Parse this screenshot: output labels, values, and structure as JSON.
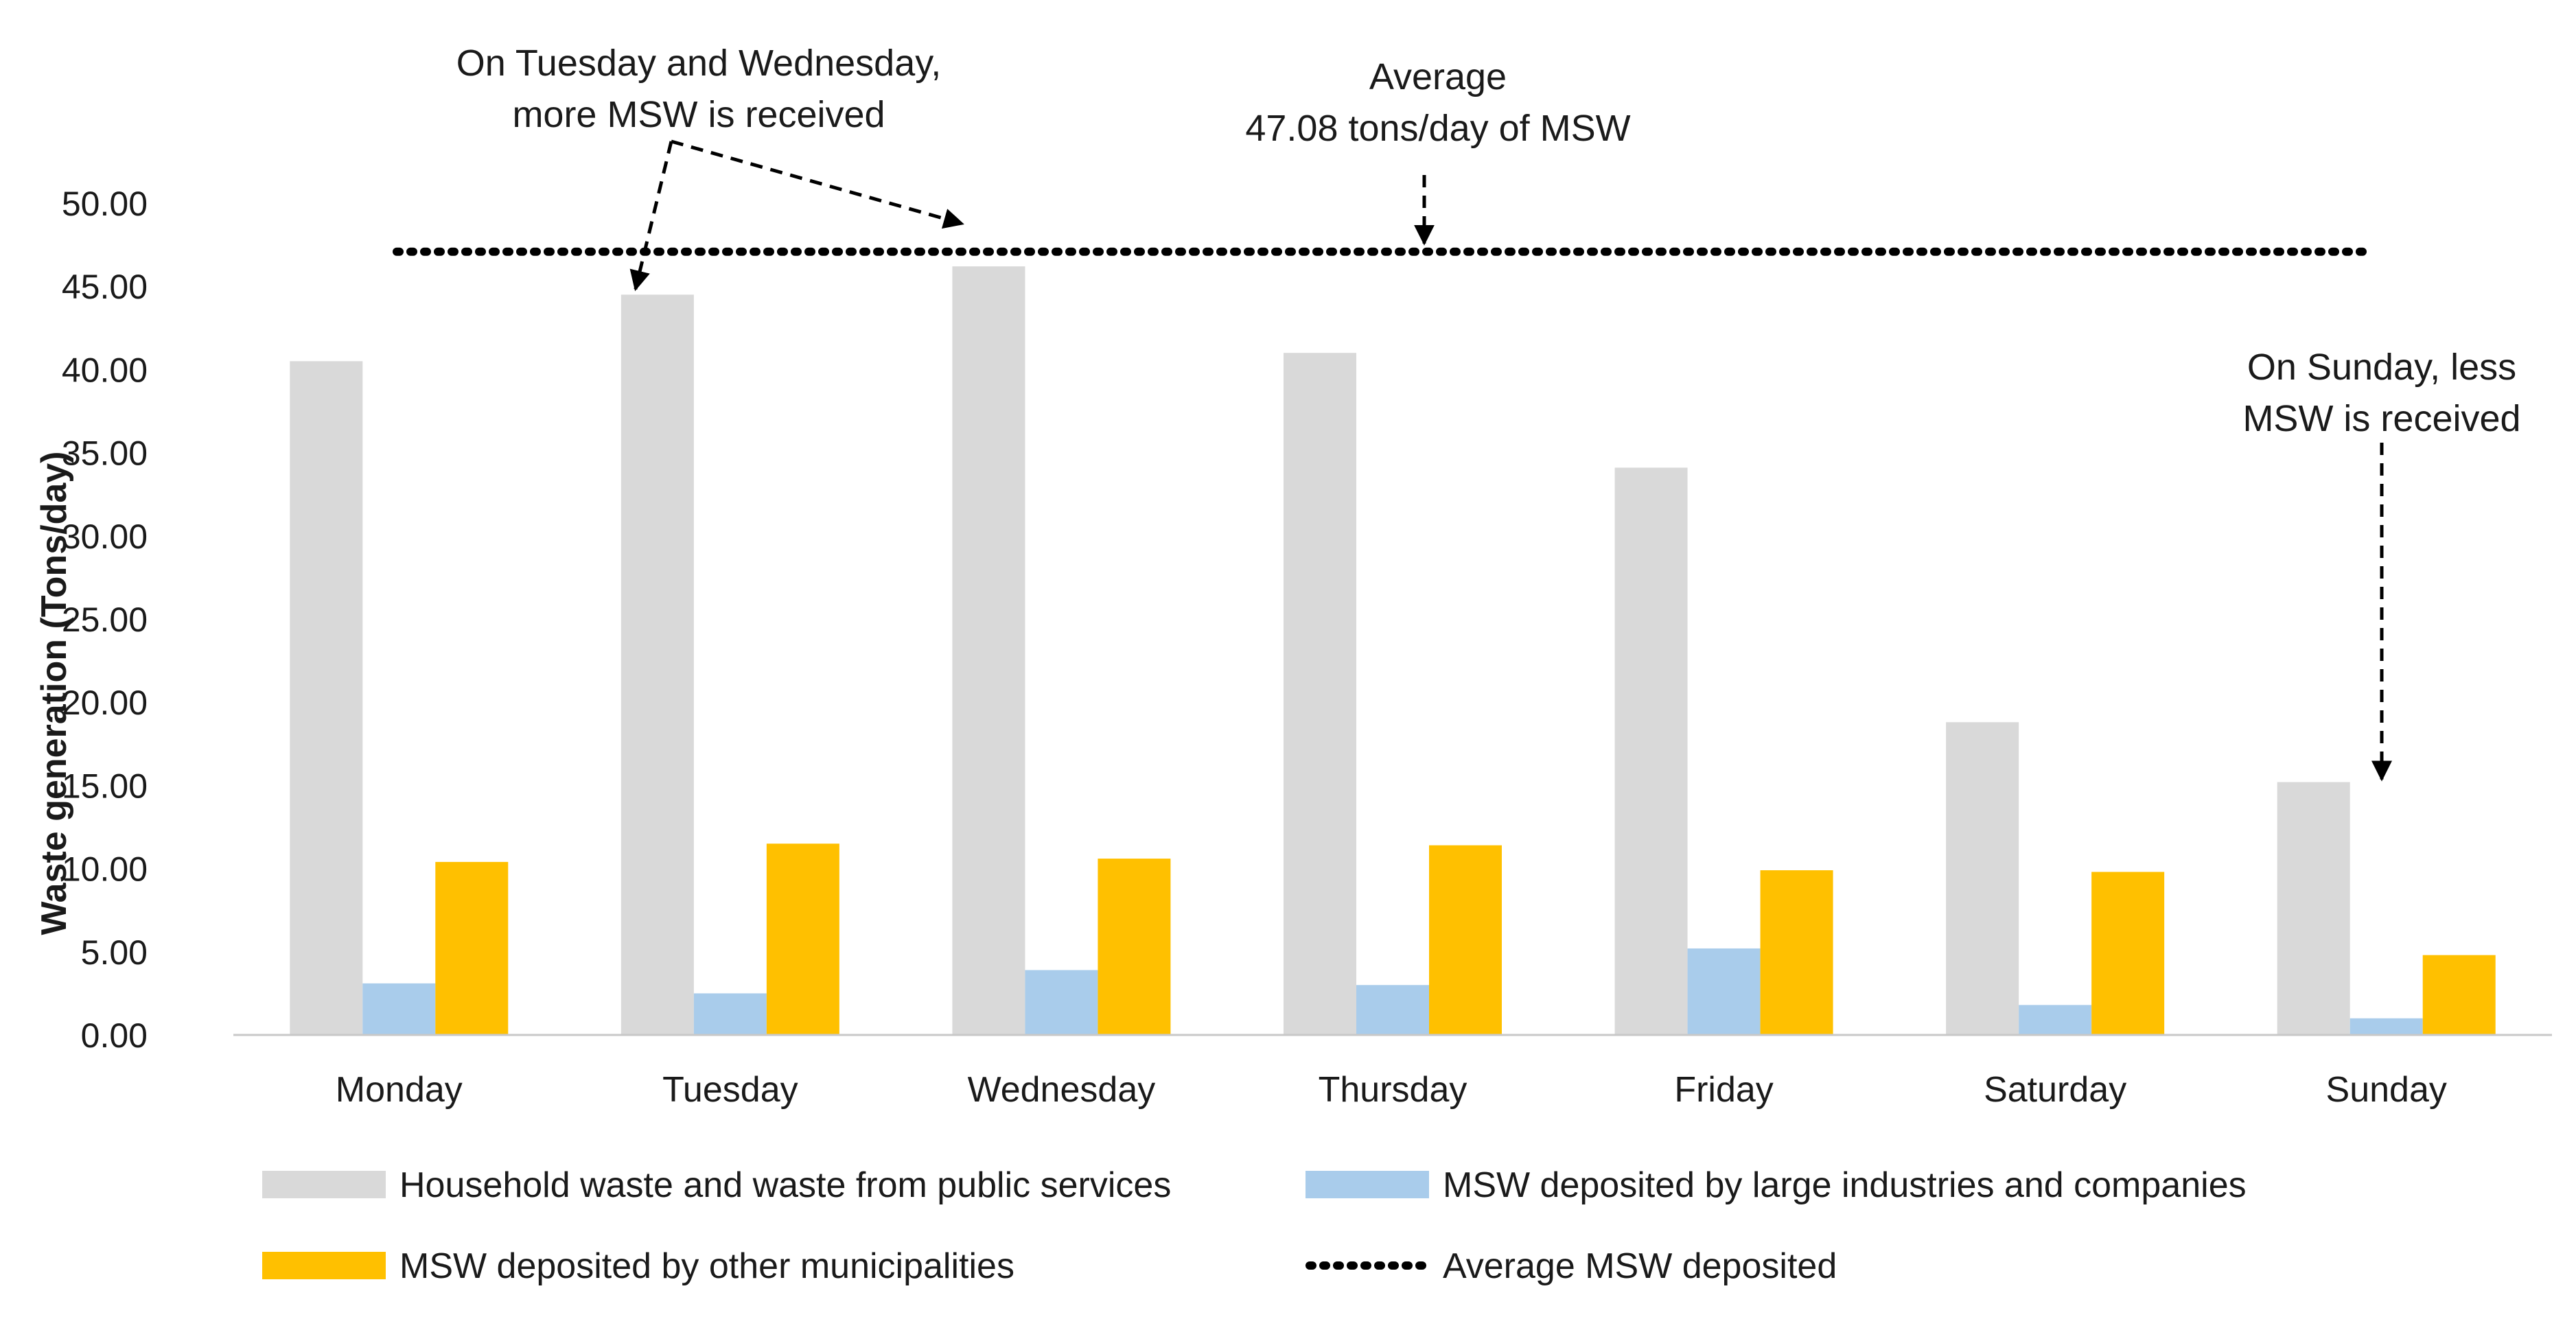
{
  "chart_data": {
    "type": "bar",
    "title": "",
    "xlabel": "",
    "ylabel": "Waste generation (Tons/day)",
    "ylim": [
      0,
      50
    ],
    "yticks": [
      "0.00",
      "5.00",
      "10.00",
      "15.00",
      "20.00",
      "25.00",
      "30.00",
      "35.00",
      "40.00",
      "45.00",
      "50.00"
    ],
    "grid": false,
    "legend_position": "bottom",
    "categories": [
      "Monday",
      "Tuesday",
      "Wednesday",
      "Thursday",
      "Friday",
      "Saturday",
      "Sunday"
    ],
    "series": [
      {
        "name": "Household waste and waste from public services",
        "color": "#d9d9d9",
        "values": [
          40.5,
          44.5,
          46.2,
          41.0,
          34.1,
          18.8,
          15.2
        ]
      },
      {
        "name": "MSW deposited by large industries and companies",
        "color": "#a9cceb",
        "values": [
          3.1,
          2.5,
          3.9,
          3.0,
          5.2,
          1.8,
          1.0
        ]
      },
      {
        "name": "MSW deposited by other municipalities",
        "color": "#ffc000",
        "values": [
          10.4,
          11.5,
          10.6,
          11.4,
          9.9,
          9.8,
          4.8
        ]
      }
    ],
    "reference_line": {
      "name": "Average MSW deposited",
      "value": 47.08,
      "style": "dotted",
      "color": "#000000"
    },
    "annotations": [
      {
        "id": "tue_wed",
        "lines": [
          "On Tuesday and Wednesday,",
          "more MSW is received"
        ]
      },
      {
        "id": "average",
        "lines": [
          "Average",
          "47.08 tons/day of MSW"
        ]
      },
      {
        "id": "sunday",
        "lines": [
          "On Sunday, less",
          "MSW is received"
        ]
      }
    ]
  }
}
